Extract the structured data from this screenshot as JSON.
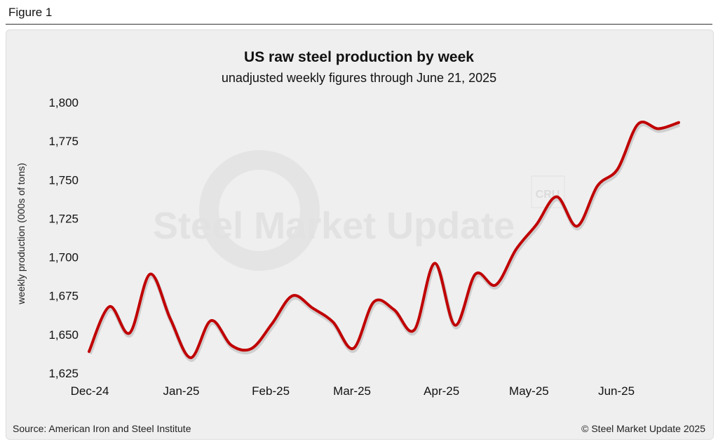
{
  "figure_label": "Figure 1",
  "footer": {
    "source": "Source: American Iron and Steel Institute",
    "copyright": "© Steel Market Update 2025"
  },
  "watermark": {
    "text": "Steel Market Update",
    "badge": "CRU"
  },
  "colors": {
    "line": "#c00000",
    "background": "#efefef"
  },
  "chart_data": {
    "type": "line",
    "title": "US raw steel production by week",
    "subtitle": "unadjusted weekly figures through June 21, 2025",
    "xlabel": "",
    "ylabel": "weekly production (000s of tons)",
    "ylim": [
      1625,
      1800
    ],
    "yticks": [
      1625,
      1650,
      1675,
      1700,
      1725,
      1750,
      1775,
      1800
    ],
    "ytick_labels": [
      "1,625",
      "1,650",
      "1,675",
      "1,700",
      "1,725",
      "1,750",
      "1,775",
      "1,800"
    ],
    "xlim": [
      0,
      29
    ],
    "xticks": [
      {
        "pos": 0,
        "label": "Dec-24"
      },
      {
        "pos": 4.5,
        "label": "Jan-25"
      },
      {
        "pos": 8.9,
        "label": "Feb-25"
      },
      {
        "pos": 12.9,
        "label": "Mar-25"
      },
      {
        "pos": 17.3,
        "label": "Apr-25"
      },
      {
        "pos": 21.6,
        "label": "May-25"
      },
      {
        "pos": 25.9,
        "label": "Jun-25"
      }
    ],
    "grid": false,
    "series": [
      {
        "name": "US raw steel production",
        "values": [
          1639,
          1668,
          1651,
          1689,
          1660,
          1635,
          1659,
          1643,
          1641,
          1657,
          1675,
          1667,
          1658,
          1641,
          1671,
          1666,
          1653,
          1696,
          1656,
          1689,
          1682,
          1705,
          1721,
          1739,
          1720,
          1746,
          1757,
          1786,
          1783,
          1787
        ]
      }
    ]
  }
}
